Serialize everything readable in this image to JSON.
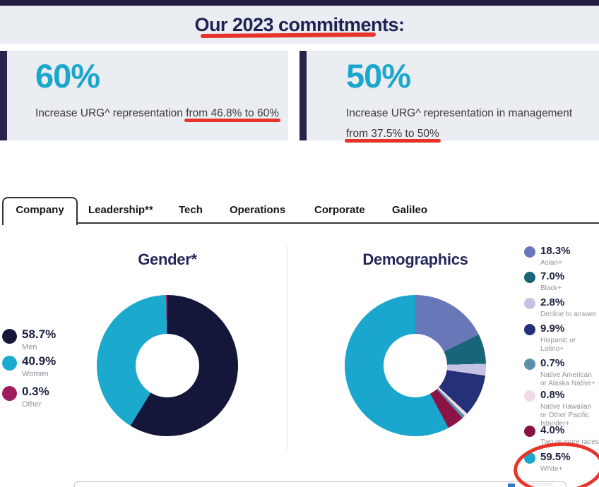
{
  "theme": {
    "topbar_navy": "#231D45",
    "band_bg": "#EAEDF1",
    "accent_cyan": "#1BA7CD",
    "heading_navy": "#1F2353",
    "marker_red": "#E7342B",
    "body_text": "#3A3B42",
    "legend_label_gray": "#8F949C"
  },
  "header": {
    "title": "Our 2023 commitments:"
  },
  "commitments": [
    {
      "stat": "60%",
      "desc_prefix": "Increase URG^ representation ",
      "desc_underlined": "from 46.8% to 60%"
    },
    {
      "stat": "50%",
      "desc_prefix": "Increase URG^ representation in management ",
      "desc_underlined": "from 37.5% to 50%"
    }
  ],
  "tabs": {
    "items": [
      {
        "label": "Company",
        "active": true
      },
      {
        "label": "Leadership**",
        "active": false
      },
      {
        "label": "Tech",
        "active": false
      },
      {
        "label": "Operations",
        "active": false
      },
      {
        "label": "Corporate",
        "active": false
      },
      {
        "label": "Galileo",
        "active": false
      }
    ]
  },
  "chart_data": [
    {
      "type": "pie",
      "subtype": "donut",
      "title": "Gender*",
      "legend_position": "left",
      "start_angle_deg": 0,
      "direction": "clockwise",
      "slices": [
        {
          "label": "Men",
          "value_pct": 58.7,
          "display": "58.7%",
          "color": "#14163A"
        },
        {
          "label": "Women",
          "value_pct": 40.9,
          "display": "40.9%",
          "color": "#1CA9CE"
        },
        {
          "label": "Other",
          "value_pct": 0.3,
          "display": "0.3%",
          "color": "#A01B5E"
        }
      ]
    },
    {
      "type": "pie",
      "subtype": "donut",
      "title": "Demographics",
      "legend_position": "right",
      "start_angle_deg": 0,
      "direction": "clockwise",
      "slices": [
        {
          "label": "Asian+",
          "value_pct": 18.3,
          "display": "18.3%",
          "color": "#6777B8"
        },
        {
          "label": "Black+",
          "value_pct": 7.0,
          "display": "7.0%",
          "color": "#186579"
        },
        {
          "label": "Decline to answer",
          "value_pct": 2.8,
          "display": "2.8%",
          "color": "#C4C3E3"
        },
        {
          "label": "Hispanic or Latino+",
          "value_pct": 9.9,
          "display": "9.9%",
          "color": "#243077"
        },
        {
          "label": "Native American or Alaska Native+",
          "value_pct": 0.7,
          "display": "0.7%",
          "color": "#5C8FA9"
        },
        {
          "label": "Native Hawaiian or Other Pacific Islander+",
          "value_pct": 0.8,
          "display": "0.8%",
          "color": "#F1DBEB"
        },
        {
          "label": "Two or more races",
          "value_pct": 4.0,
          "display": "4.0%",
          "color": "#8C1345"
        },
        {
          "label": "White+",
          "value_pct": 59.5,
          "display": "59.5%",
          "color": "#1BA7CD"
        }
      ],
      "draw_order": [
        0,
        1,
        2,
        3,
        5,
        4,
        6,
        7
      ]
    }
  ],
  "annotations": {
    "marker_color": "#E7342B",
    "items": [
      "red underline below page title",
      "red underline below 'from 46.8% to 60%'",
      "red underline below 'from 37.5% to 50%'",
      "red circle around the 59.5% White+ legend entry"
    ]
  }
}
